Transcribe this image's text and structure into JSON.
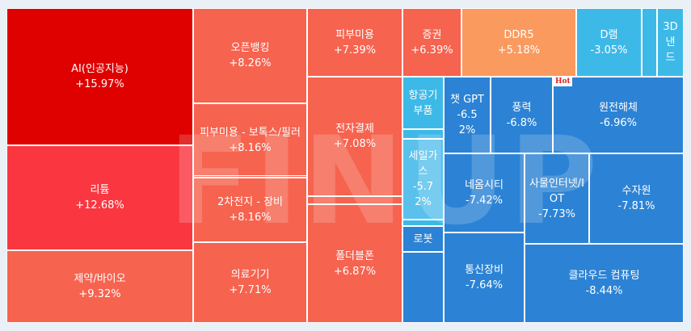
{
  "chart_data": {
    "type": "treemap",
    "tiles": [
      {
        "label": "AI(인공지능)",
        "change": "+15.97%",
        "value": 15.97,
        "color": "#df0000"
      },
      {
        "label": "리튬",
        "change": "+12.68%",
        "value": 12.68,
        "color": "#fa3640"
      },
      {
        "label": "제약/바이오",
        "change": "+9.32%",
        "value": 9.32,
        "color": "#f6634f"
      },
      {
        "label": "오픈뱅킹",
        "change": "+8.26%",
        "value": 8.26,
        "color": "#f6634f"
      },
      {
        "label": "피부미용 - 보톡스/필러",
        "change": "+8.16%",
        "value": 8.16,
        "color": "#f6634f"
      },
      {
        "label": "2차전지 - 장비",
        "change": "+8.16%",
        "value": 8.16,
        "color": "#f6634f"
      },
      {
        "label": "의료기기",
        "change": "+7.71%",
        "value": 7.71,
        "color": "#f6634f"
      },
      {
        "label": "피부미용",
        "change": "+7.39%",
        "value": 7.39,
        "color": "#f6634f"
      },
      {
        "label": "전자결제",
        "change": "+7.08%",
        "value": 7.08,
        "color": "#f6634f"
      },
      {
        "label": "폴더블폰",
        "change": "+6.87%",
        "value": 6.87,
        "color": "#f6634f"
      },
      {
        "label": "",
        "change": "",
        "value": null,
        "color": "#f6634f"
      },
      {
        "label": "",
        "change": "",
        "value": null,
        "color": "#f6634f"
      },
      {
        "label": "증권",
        "change": "+6.39%",
        "value": 6.39,
        "color": "#f6634f"
      },
      {
        "label": "DDR5",
        "change": "+5.18%",
        "value": 5.18,
        "color": "#fb9a5e"
      },
      {
        "label": "D램",
        "change": "-3.05%",
        "value": -3.05,
        "color": "#3db9e8"
      },
      {
        "label": "",
        "change": "",
        "value": null,
        "color": "#3db9e8"
      },
      {
        "label": "3D 낸드",
        "change": "",
        "value": null,
        "color": "#3db9e8"
      },
      {
        "label": "항공기 부품",
        "change": "",
        "value": null,
        "color": "#3db9e8"
      },
      {
        "label": "",
        "change": "",
        "value": null,
        "color": "#3db9e8"
      },
      {
        "label": "세일가스",
        "change": "-5.72%",
        "value": -5.72,
        "color": "#59c1ec"
      },
      {
        "label": "",
        "change": "",
        "value": null,
        "color": "#3db9e8"
      },
      {
        "label": "로봇",
        "change": "",
        "value": null,
        "color": "#2c83d5"
      },
      {
        "label": "",
        "change": "",
        "value": null,
        "color": "#2c83d5"
      },
      {
        "label": "챗 GPT",
        "change": "-6.52%",
        "value": -6.52,
        "color": "#2c83d5"
      },
      {
        "label": "풍력",
        "change": "-6.8%",
        "value": -6.8,
        "color": "#2c83d5"
      },
      {
        "label": "원전해체",
        "change": "-6.96%",
        "value": -6.96,
        "color": "#2c83d5",
        "badge": "Hot"
      },
      {
        "label": "네옴시티",
        "change": "-7.42%",
        "value": -7.42,
        "color": "#2c83d5"
      },
      {
        "label": "사물인터넷/IOT",
        "change": "-7.73%",
        "value": -7.73,
        "color": "#2c83d5"
      },
      {
        "label": "수자원",
        "change": "-7.81%",
        "value": -7.81,
        "color": "#2c83d5"
      },
      {
        "label": "통신장비",
        "change": "-7.64%",
        "value": -7.64,
        "color": "#2c83d5"
      },
      {
        "label": "클라우드 컴퓨팅",
        "change": "-8.44%",
        "value": -8.44,
        "color": "#2c83d5"
      }
    ]
  },
  "watermark": "FINUP"
}
